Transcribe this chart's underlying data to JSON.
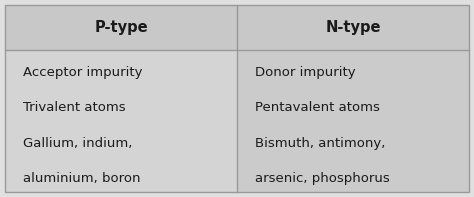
{
  "headers": [
    "P-type",
    "N-type"
  ],
  "p_type_rows": [
    "Acceptor impurity",
    "Trivalent atoms",
    "Gallium, indium,",
    "aluminium, boron"
  ],
  "n_type_rows": [
    "Donor impurity",
    "Pentavalent atoms",
    "Bismuth, antimony,",
    "arsenic, phosphorus"
  ],
  "header_bg": "#c8c8c8",
  "cell_bg_left": "#d4d4d4",
  "cell_bg_right": "#cbcbcb",
  "border_color": "#999999",
  "text_color": "#1a1a1a",
  "outer_bg": "#e0e0e0",
  "header_fontsize": 10.5,
  "cell_fontsize": 9.5
}
